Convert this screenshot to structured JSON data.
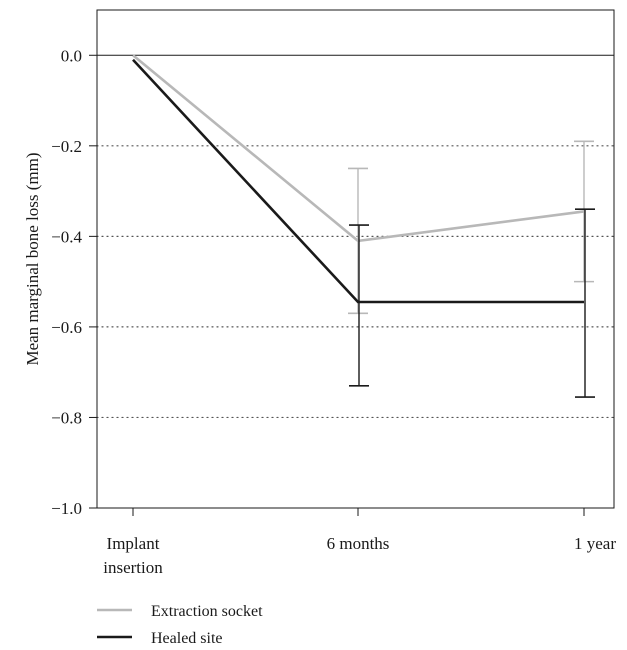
{
  "chart_data": {
    "type": "line",
    "ylabel": "Mean marginal bone loss (mm)",
    "xlabel": "",
    "categories": [
      [
        "Implant",
        "insertion"
      ],
      [
        "6 months"
      ],
      [
        "1 year"
      ]
    ],
    "ylim": [
      -1.0,
      0.1
    ],
    "yticks": [
      0.0,
      -0.2,
      -0.4,
      -0.6,
      -0.8,
      -1.0
    ],
    "ytick_labels": [
      "0.0",
      "−0.2",
      "−0.4",
      "−0.6",
      "−0.8",
      "−1.0"
    ],
    "grid": "dotted horizontal at -0.2, -0.4, -0.6, -0.8; solid line at 0.0",
    "legend_position": "bottom-left",
    "series": [
      {
        "name": "Extraction socket",
        "color": "#b8b8b8",
        "values": [
          0.0,
          -0.41,
          -0.345
        ],
        "error_low": [
          null,
          -0.57,
          -0.5
        ],
        "error_high": [
          null,
          -0.25,
          -0.19
        ]
      },
      {
        "name": "Healed site",
        "color": "#1a1a1a",
        "values": [
          -0.01,
          -0.545,
          -0.545
        ],
        "error_low": [
          null,
          -0.73,
          -0.755
        ],
        "error_high": [
          null,
          -0.375,
          -0.34
        ]
      }
    ]
  }
}
